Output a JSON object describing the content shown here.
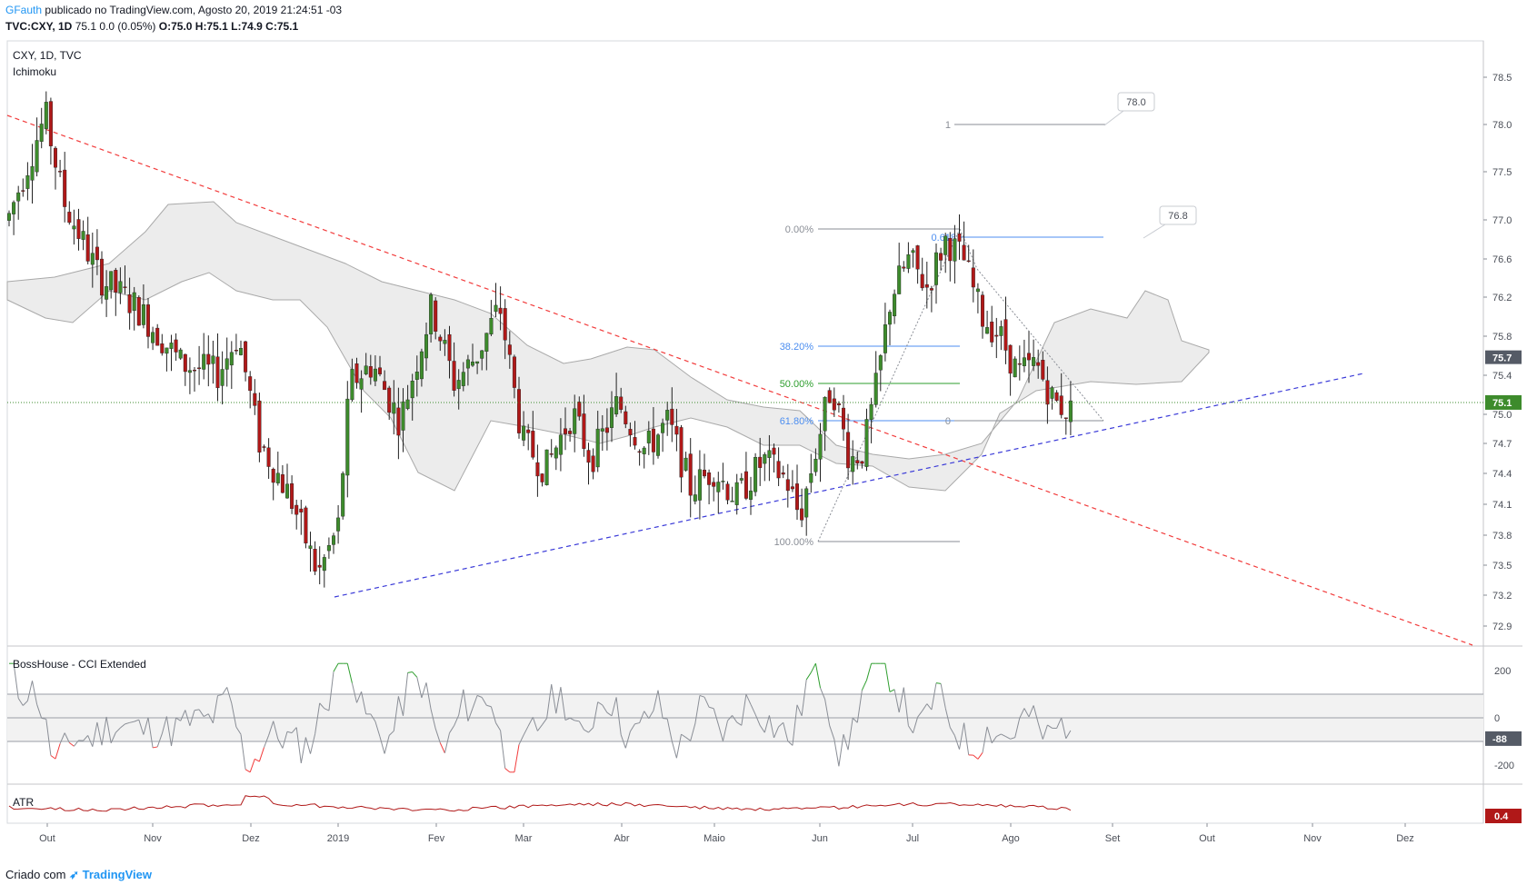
{
  "header": {
    "author": "GFauth",
    "published": "publicado no TradingView.com, Agosto 20, 2019 21:24:51 -03",
    "symbol": "TVC:CXY, 1D",
    "quote": "75.1 0.0 (0.05%)",
    "ohlc": "O:75.0 H:75.1 L:74.9 C:75.1"
  },
  "main_pane": {
    "title": "CXY, 1D, TVC",
    "indicator": "Ichimoku"
  },
  "cci_pane": {
    "title": "BossHouse - CCI Extended",
    "ticks": [
      "200",
      "0",
      "-200"
    ],
    "last_label": "-88"
  },
  "atr_pane": {
    "title": "ATR",
    "last_label": "0.4"
  },
  "footer": {
    "created": "Criado com",
    "brand": "TradingView"
  },
  "colors": {
    "up": "#3d8b2c",
    "down": "#b01818",
    "cloud": "#e6e6e6",
    "trend_down": "#f23c3c",
    "trend_up": "#3a3ad8",
    "fib_blue": "#4c8ef0",
    "fib_green": "#2e9e2e"
  },
  "chart_data": {
    "type": "candlestick",
    "title": "CXY, 1D, TVC",
    "price_axis": {
      "ticks": [
        "78.5",
        "78.0",
        "77.5",
        "77.0",
        "76.6",
        "76.2",
        "75.8",
        "75.4",
        "75.0",
        "74.7",
        "74.4",
        "74.1",
        "73.8",
        "73.5",
        "73.2",
        "72.9"
      ],
      "min": 72.7,
      "max": 78.7
    },
    "time_axis": {
      "labels": [
        "Out",
        "Nov",
        "Dez",
        "2019",
        "Fev",
        "Mar",
        "Abr",
        "Maio",
        "Jun",
        "Jul",
        "Ago",
        "Set",
        "Out",
        "Nov",
        "Dez"
      ]
    },
    "last_price": 75.1,
    "ichimoku_tag": 75.7,
    "fibonacci_retracement": {
      "high": 76.9,
      "low": 73.8,
      "levels": [
        {
          "label": "0.00%",
          "value": 76.9
        },
        {
          "label": "38.20%",
          "value": 75.7
        },
        {
          "label": "50.00%",
          "value": 75.35
        },
        {
          "label": "61.80%",
          "value": 74.95
        },
        {
          "label": "100.00%",
          "value": 73.8
        }
      ]
    },
    "fibonacci_extension": {
      "levels": [
        {
          "label": "1",
          "value": 78.0
        },
        {
          "label": "0.618",
          "value": 76.8
        },
        {
          "label": "0",
          "value": 74.95
        }
      ],
      "callouts": [
        "78.0",
        "76.8"
      ]
    },
    "trendlines": [
      {
        "name": "downtrend",
        "from": [
          "Set 2018",
          78.1
        ],
        "to": [
          "Dez 2019",
          72.8
        ]
      },
      {
        "name": "uptrend",
        "from": [
          "Dez 2018",
          73.2
        ],
        "to": [
          "Nov 2019",
          75.5
        ]
      }
    ]
  }
}
